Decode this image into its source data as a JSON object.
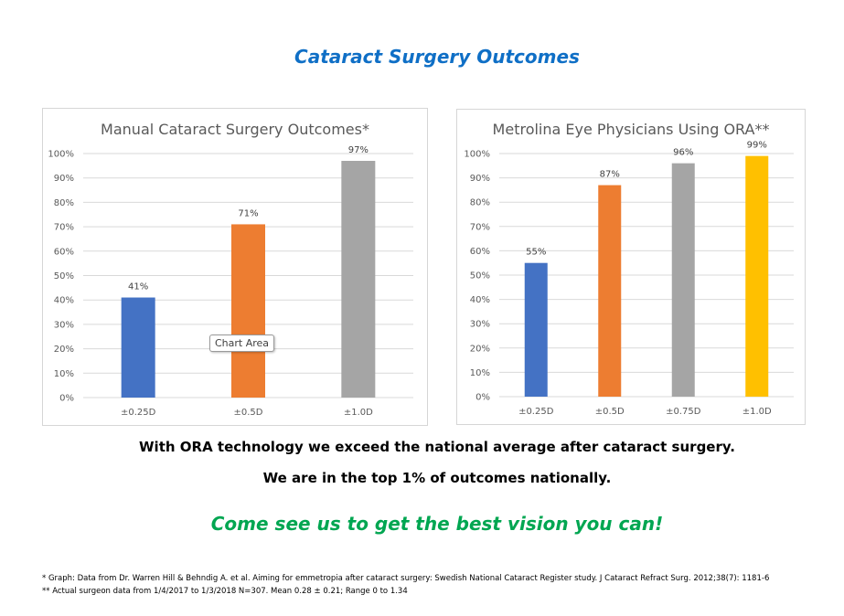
{
  "page": {
    "title": "Cataract Surgery Outcomes",
    "tooltip": "Chart Area",
    "message_1": "With ORA technology we exceed the national average after cataract surgery.",
    "message_2": "We are in the top 1% of outcomes nationally.",
    "call_to_action": "Come see us to get the best vision you can!",
    "footnote_1": "*  Graph: Data from Dr. Warren Hill & Behndig A. et al. Aiming for emmetropia after cataract surgery: Swedish National Cataract Register study. J Cataract Refract Surg. 2012;38(7): 1181-6",
    "footnote_2": "** Actual surgeon data from 1/4/2017 to 1/3/2018 N=307. Mean 0.28 ± 0.21; Range 0 to 1.34"
  },
  "chart_data": [
    {
      "type": "bar",
      "title": "Manual Cataract Surgery Outcomes*",
      "categories": [
        "±0.25D",
        "±0.5D",
        "±1.0D"
      ],
      "values": [
        41,
        71,
        97
      ],
      "data_labels": [
        "41%",
        "71%",
        "97%"
      ],
      "colors": [
        "#4472c4",
        "#ed7d31",
        "#a5a5a5"
      ],
      "yticks": [
        "0%",
        "10%",
        "20%",
        "30%",
        "40%",
        "50%",
        "60%",
        "70%",
        "80%",
        "90%",
        "100%"
      ],
      "ylim": [
        0,
        100
      ],
      "grid": true,
      "legend": "none"
    },
    {
      "type": "bar",
      "title": "Metrolina Eye Physicians Using ORA**",
      "categories": [
        "±0.25D",
        "±0.5D",
        "±0.75D",
        "±1.0D"
      ],
      "values": [
        55,
        87,
        96,
        99
      ],
      "data_labels": [
        "55%",
        "87%",
        "96%",
        "99%"
      ],
      "colors": [
        "#4472c4",
        "#ed7d31",
        "#a5a5a5",
        "#ffc000"
      ],
      "yticks": [
        "0%",
        "10%",
        "20%",
        "30%",
        "40%",
        "50%",
        "60%",
        "70%",
        "80%",
        "90%",
        "100%"
      ],
      "ylim": [
        0,
        100
      ],
      "grid": true,
      "legend": "none"
    }
  ]
}
